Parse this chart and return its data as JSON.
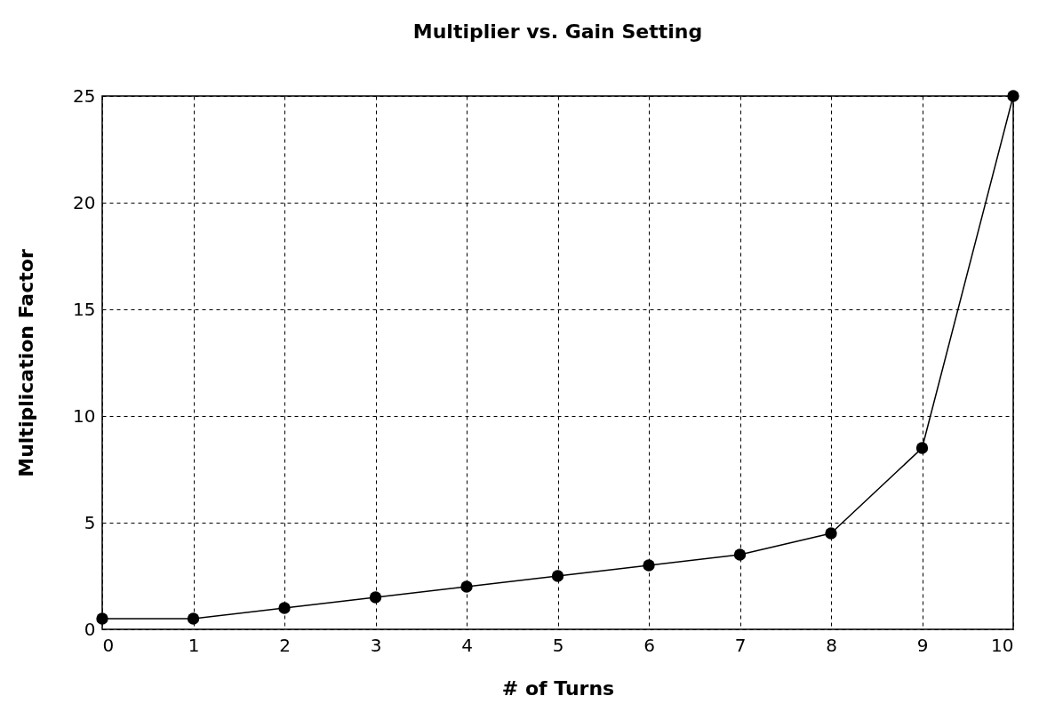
{
  "chart_data": {
    "type": "line",
    "title": "Multiplier vs. Gain Setting",
    "xlabel": "# of Turns",
    "ylabel": "Multiplication Factor",
    "x": [
      0,
      1,
      2,
      3,
      4,
      5,
      6,
      7,
      8,
      9,
      10
    ],
    "series": [
      {
        "color": "#000000",
        "values": [
          0.5,
          0.5,
          1,
          1.5,
          2,
          2.5,
          3,
          3.5,
          4.5,
          8.5,
          25
        ]
      }
    ],
    "xlim": [
      0,
      10
    ],
    "xticks": [
      0,
      1,
      2,
      3,
      4,
      5,
      6,
      7,
      8,
      9,
      10
    ],
    "ylim": [
      0,
      25
    ],
    "yticks": [
      0,
      5,
      10,
      15,
      20,
      25
    ],
    "grid": true,
    "marker": "circle",
    "line_style": "solid"
  }
}
